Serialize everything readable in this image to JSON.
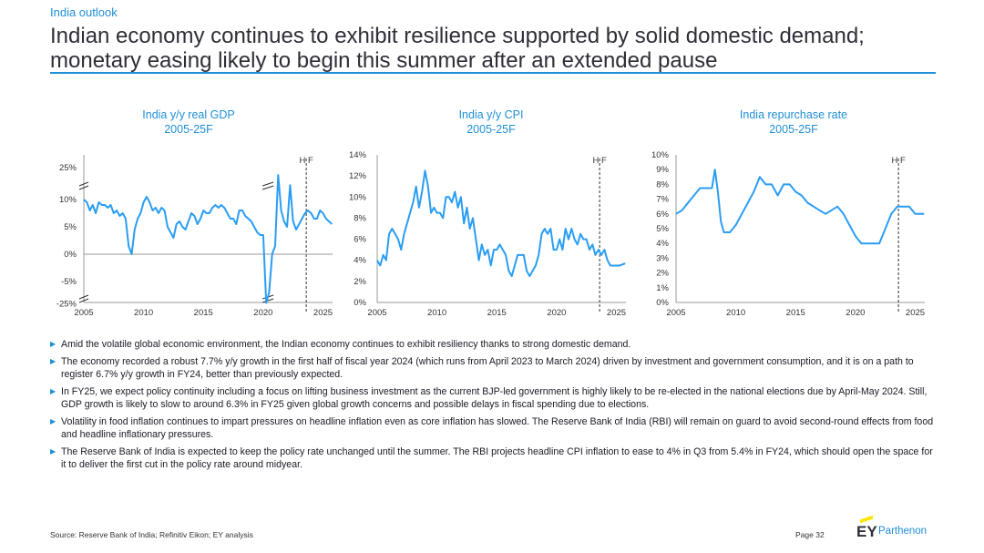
{
  "header": {
    "kicker": "India outlook",
    "title_line1": "Indian economy continues to exhibit resilience supported by solid domestic demand;",
    "title_line2": "monetary easing likely to begin this summer after an extended pause"
  },
  "colors": {
    "accent": "#1f8fd6",
    "line": "#2a9df4",
    "text": "#2e2e38",
    "logo_yellow": "#ffe600"
  },
  "chart_data": [
    {
      "type": "line",
      "title": "India y/y real GDP",
      "subtitle": "2005-25F",
      "forecast_marker": "H F",
      "x_ticks": [
        "2005",
        "2010",
        "2015",
        "2020",
        "2025"
      ],
      "y_ticks": [
        "25%",
        "10%",
        "5%",
        "0%",
        "-5%",
        "-25%"
      ],
      "axis_break": true,
      "series": [
        {
          "x": [
            2005,
            2005.25,
            2005.5,
            2005.75,
            2006,
            2006.25,
            2006.5,
            2006.75,
            2007,
            2007.25,
            2007.5,
            2007.75,
            2008,
            2008.25,
            2008.5,
            2008.75,
            2009,
            2009.25,
            2009.5,
            2009.75,
            2010,
            2010.25,
            2010.5,
            2010.75,
            2011,
            2011.25,
            2011.5,
            2011.75,
            2012,
            2012.25,
            2012.5,
            2012.75,
            2013,
            2013.25,
            2013.5,
            2013.75,
            2014,
            2014.25,
            2014.5,
            2014.75,
            2015,
            2015.25,
            2015.5,
            2015.75,
            2016,
            2016.25,
            2016.5,
            2016.75,
            2017,
            2017.25,
            2017.5,
            2017.75,
            2018,
            2018.25,
            2018.5,
            2018.75,
            2019,
            2019.25,
            2019.5,
            2019.75,
            2020,
            2020.25,
            2020.5,
            2020.75,
            2021,
            2021.25,
            2021.5,
            2021.75,
            2022,
            2022.25,
            2022.5,
            2022.75,
            2023,
            2023.25,
            2023.5,
            2023.75,
            2024,
            2024.25,
            2024.5,
            2024.75,
            2025,
            2025.25,
            2025.5,
            2025.75
          ],
          "values": [
            10,
            9.5,
            8,
            9,
            7.5,
            9.5,
            9,
            9,
            8.5,
            9,
            7.5,
            8,
            7,
            7.5,
            6.5,
            1.5,
            0,
            4.5,
            6.5,
            7.5,
            9.5,
            10.5,
            9.5,
            8,
            8.5,
            7.5,
            8.5,
            8,
            5,
            4,
            3,
            5.5,
            6,
            5,
            4.5,
            6,
            7.5,
            7,
            5.5,
            6.5,
            8,
            7.5,
            7.5,
            8.5,
            9,
            8.5,
            9,
            8.5,
            7.5,
            6.5,
            6.5,
            5.5,
            8,
            8,
            7,
            6.5,
            6,
            5,
            4,
            3.5,
            3.5,
            -23,
            -7,
            0,
            1.5,
            20,
            8,
            6,
            5,
            13,
            6,
            4.5,
            5.5,
            6.5,
            7.5,
            8,
            7.5,
            6.5,
            6.5,
            8,
            7.5,
            6.5,
            6,
            5.5
          ]
        }
      ]
    },
    {
      "type": "line",
      "title": "India y/y CPI",
      "subtitle": "2005-25F",
      "forecast_marker": "H F",
      "x_ticks": [
        "2005",
        "2010",
        "2015",
        "2020",
        "2025"
      ],
      "y_ticks": [
        "14%",
        "12%",
        "10%",
        "8%",
        "6%",
        "4%",
        "2%",
        "0%"
      ],
      "ylim": [
        0,
        14
      ],
      "series": [
        {
          "x": [
            2005,
            2005.25,
            2005.5,
            2005.75,
            2006,
            2006.25,
            2006.5,
            2006.75,
            2007,
            2007.25,
            2007.5,
            2007.75,
            2008,
            2008.25,
            2008.5,
            2008.75,
            2009,
            2009.25,
            2009.5,
            2009.75,
            2010,
            2010.25,
            2010.5,
            2010.75,
            2011,
            2011.25,
            2011.5,
            2011.75,
            2012,
            2012.25,
            2012.5,
            2012.75,
            2013,
            2013.25,
            2013.5,
            2013.75,
            2014,
            2014.25,
            2014.5,
            2014.75,
            2015,
            2015.25,
            2015.5,
            2015.75,
            2016,
            2016.25,
            2016.5,
            2016.75,
            2017,
            2017.25,
            2017.5,
            2017.75,
            2018,
            2018.25,
            2018.5,
            2018.75,
            2019,
            2019.25,
            2019.5,
            2019.75,
            2020,
            2020.25,
            2020.5,
            2020.75,
            2021,
            2021.25,
            2021.5,
            2021.75,
            2022,
            2022.25,
            2022.5,
            2022.75,
            2023,
            2023.25,
            2023.5,
            2023.75,
            2024,
            2024.25,
            2024.5,
            2024.75,
            2025,
            2025.25,
            2025.5,
            2025.75
          ],
          "values": [
            4,
            3.5,
            4.5,
            4,
            6.5,
            7,
            6.5,
            6,
            5,
            6.5,
            7.5,
            8.5,
            9.5,
            11,
            9,
            10.5,
            12.5,
            11,
            8.5,
            9,
            8.5,
            8.5,
            8,
            10,
            10,
            9.5,
            10.5,
            9,
            10,
            7.5,
            9,
            7,
            8,
            6,
            4,
            5.5,
            4.5,
            5,
            3.5,
            5,
            5,
            5.5,
            5,
            4.5,
            3,
            2.5,
            3.5,
            4.5,
            4.5,
            4.5,
            3,
            2.5,
            3,
            3.5,
            4.5,
            6.5,
            7,
            6.5,
            7,
            5,
            5,
            6,
            5,
            7,
            6,
            7,
            6,
            5.5,
            6.5,
            6,
            6,
            5,
            5.5,
            4.5,
            5,
            4.5,
            5,
            4,
            3.5,
            3.5,
            3.5,
            3.5,
            3.6,
            3.7
          ]
        }
      ]
    },
    {
      "type": "line",
      "title": "India repurchase rate",
      "subtitle": "2005-25F",
      "forecast_marker": "H F",
      "x_ticks": [
        "2005",
        "2010",
        "2015",
        "2020",
        "2025"
      ],
      "y_ticks": [
        "10%",
        "9%",
        "8%",
        "7%",
        "6%",
        "5%",
        "4%",
        "3%",
        "2%",
        "1%",
        "0%"
      ],
      "ylim": [
        0,
        10
      ],
      "series": [
        {
          "x": [
            2005,
            2005.5,
            2006,
            2006.5,
            2007,
            2007.5,
            2008,
            2008.25,
            2008.5,
            2008.75,
            2009,
            2009.5,
            2010,
            2010.5,
            2011,
            2011.5,
            2012,
            2012.5,
            2013,
            2013.5,
            2014,
            2014.5,
            2015,
            2015.5,
            2016,
            2016.5,
            2017,
            2017.5,
            2018,
            2018.5,
            2019,
            2019.5,
            2020,
            2020.5,
            2021,
            2021.5,
            2022,
            2022.5,
            2023,
            2023.5,
            2024,
            2024.5,
            2025,
            2025.5,
            2025.75
          ],
          "values": [
            6,
            6.25,
            6.75,
            7.25,
            7.75,
            7.75,
            7.75,
            9,
            7.5,
            5.5,
            4.75,
            4.75,
            5.25,
            6,
            6.75,
            7.5,
            8.5,
            8,
            8,
            7.25,
            8,
            8,
            7.5,
            7.25,
            6.75,
            6.5,
            6.25,
            6,
            6.25,
            6.5,
            6,
            5.25,
            4.5,
            4,
            4,
            4,
            4,
            5,
            6,
            6.5,
            6.5,
            6.5,
            6,
            6,
            6
          ]
        }
      ]
    }
  ],
  "bullets": [
    "Amid the volatile global economic environment, the Indian economy continues to exhibit resiliency thanks to strong domestic demand.",
    "The economy recorded a robust 7.7% y/y growth in the first half of fiscal year 2024 (which runs from April 2023 to March 2024) driven by investment and government consumption, and it is on a path to register 6.7% y/y growth in FY24, better than previously expected.",
    "In FY25, we expect policy continuity including a focus on lifting business investment as the current BJP-led government is highly likely to be re-elected in the national elections due by April-May 2024. Still, GDP growth is likely to slow to around 6.3% in FY25 given global growth concerns and possible delays in fiscal spending due to elections.",
    "Volatility in food inflation continues to impart pressures on headline inflation even as core inflation has slowed. The Reserve Bank of India (RBI) will remain on guard to avoid second-round effects from food and headline inflationary pressures.",
    "The Reserve Bank of India is expected to keep the policy rate unchanged until the summer. The RBI projects headline CPI inflation to ease to 4% in Q3 from 5.4% in FY24, which should open the space for it to deliver the first cut in the policy rate around midyear."
  ],
  "footer": {
    "source": "Source: Reserve Bank of India; Refinitiv Eikon; EY analysis",
    "page": "Page 32",
    "logo_ey": "EY",
    "logo_parthenon": "Parthenon"
  }
}
